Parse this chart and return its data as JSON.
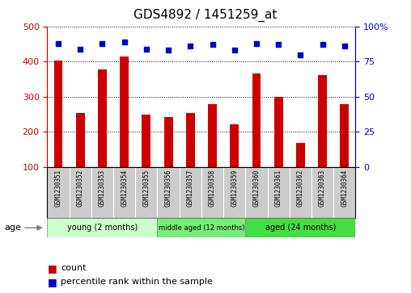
{
  "title": "GDS4892 / 1451259_at",
  "samples": [
    "GSM1230351",
    "GSM1230352",
    "GSM1230353",
    "GSM1230354",
    "GSM1230355",
    "GSM1230356",
    "GSM1230357",
    "GSM1230358",
    "GSM1230359",
    "GSM1230360",
    "GSM1230361",
    "GSM1230362",
    "GSM1230363",
    "GSM1230364"
  ],
  "counts": [
    403,
    254,
    378,
    415,
    249,
    243,
    254,
    278,
    221,
    366,
    300,
    168,
    362,
    278
  ],
  "percentiles": [
    88,
    84,
    88,
    89,
    84,
    83,
    86,
    87,
    83,
    88,
    87,
    80,
    87,
    86
  ],
  "ylim_left": [
    100,
    500
  ],
  "ylim_right": [
    0,
    100
  ],
  "yticks_left": [
    100,
    200,
    300,
    400,
    500
  ],
  "yticks_right": [
    0,
    25,
    50,
    75,
    100
  ],
  "ytick_right_labels": [
    "0",
    "25",
    "50",
    "75",
    "100%"
  ],
  "bar_color": "#cc0000",
  "dot_color": "#0000cc",
  "groups": [
    {
      "label": "young (2 months)",
      "start": 0,
      "end": 5
    },
    {
      "label": "middle aged (12 months)",
      "start": 5,
      "end": 9
    },
    {
      "label": "aged (24 months)",
      "start": 9,
      "end": 14
    }
  ],
  "group_colors": [
    "#ccffcc",
    "#77ee77",
    "#44dd44"
  ],
  "age_label": "age",
  "legend_count_label": "count",
  "legend_percentile_label": "percentile rank within the sample",
  "plot_bg": "#ffffff",
  "xtick_bg": "#cccccc",
  "title_fontsize": 11,
  "tick_fontsize": 8,
  "bar_width": 0.4
}
